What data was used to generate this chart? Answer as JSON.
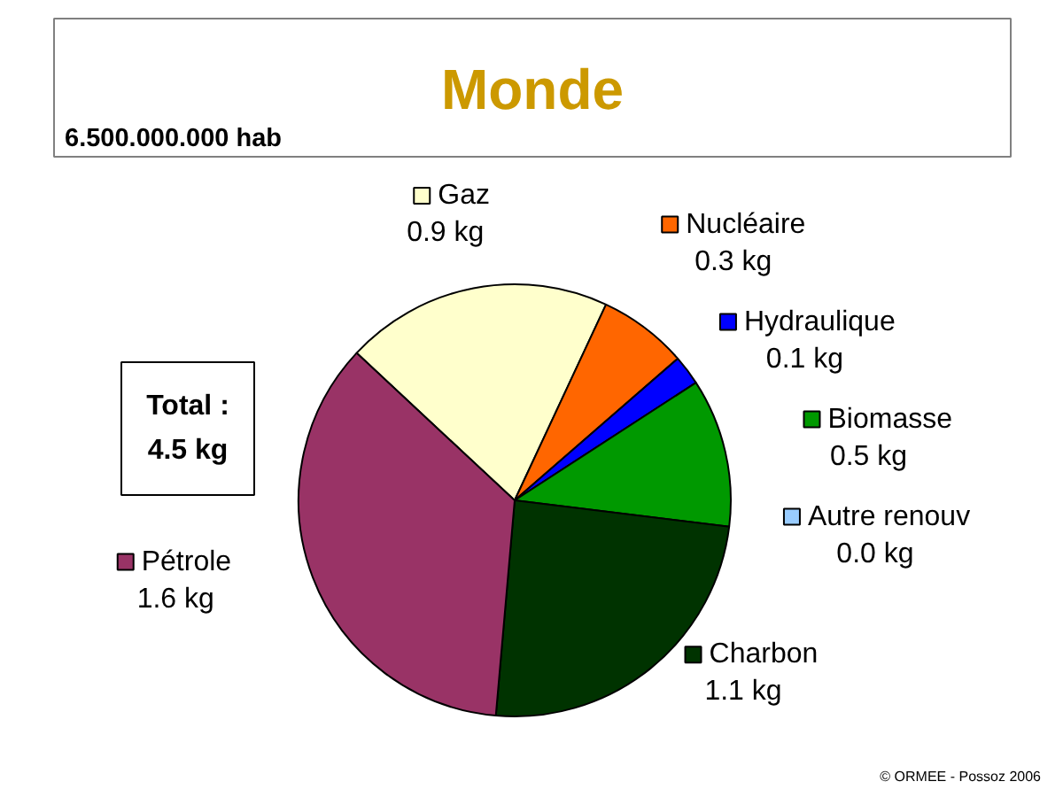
{
  "chart_data": {
    "type": "pie",
    "title": "Monde",
    "subtitle": "6.500.000.000 hab",
    "categories": [
      "Gaz",
      "Nucléaire",
      "Hydraulique",
      "Biomasse",
      "Autre renouv",
      "Charbon",
      "Pétrole"
    ],
    "values": [
      0.9,
      0.3,
      0.1,
      0.5,
      0.0,
      1.1,
      1.6
    ],
    "colors": [
      "#ffffcc",
      "#ff6600",
      "#0000ff",
      "#009900",
      "#99ccff",
      "#003300",
      "#993366"
    ],
    "value_labels": [
      "0.9 kg",
      "0.3 kg",
      "0.1 kg",
      "0.5 kg",
      "0.0 kg",
      "1.1 kg",
      "1.6 kg"
    ],
    "legend": "right",
    "annotations": [
      "Total :\n4.5 kg",
      "© ORMEE - Possoz 2006"
    ]
  }
}
